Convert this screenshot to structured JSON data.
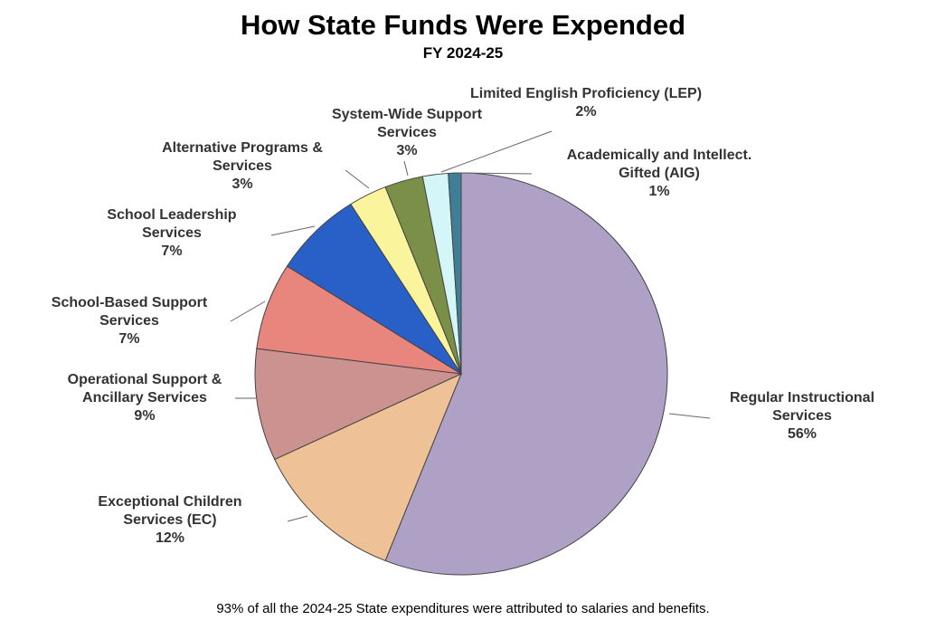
{
  "chart_data": {
    "type": "pie",
    "title": "How State Funds Were Expended",
    "subtitle": "FY 2024-25",
    "footnote": "93% of all the 2024-25 State expenditures were attributed to salaries and benefits.",
    "start": "12 o'clock, clockwise",
    "slices": [
      {
        "label": "Regular Instructional Services",
        "lines": [
          "Regular Instructional",
          "Services"
        ],
        "value": 56,
        "pct": "56%",
        "color": "#AFA0C6"
      },
      {
        "label": "Exceptional Children Services (EC)",
        "lines": [
          "Exceptional Children",
          "Services (EC)"
        ],
        "value": 12,
        "pct": "12%",
        "color": "#EEC197"
      },
      {
        "label": "Operational Support & Ancillary Services",
        "lines": [
          "Operational Support &",
          "Ancillary Services"
        ],
        "value": 9,
        "pct": "9%",
        "color": "#CC9290"
      },
      {
        "label": "School-Based Support Services",
        "lines": [
          "School-Based Support",
          "Services"
        ],
        "value": 7,
        "pct": "7%",
        "color": "#E8857D"
      },
      {
        "label": "School Leadership Services",
        "lines": [
          "School Leadership",
          "Services"
        ],
        "value": 7,
        "pct": "7%",
        "color": "#2860C8"
      },
      {
        "label": "Alternative Programs & Services",
        "lines": [
          "Alternative Programs &",
          "Services"
        ],
        "value": 3,
        "pct": "3%",
        "color": "#FAF59C"
      },
      {
        "label": "System-Wide Support Services",
        "lines": [
          "System-Wide Support",
          "Services"
        ],
        "value": 3,
        "pct": "3%",
        "color": "#7A8F47"
      },
      {
        "label": "Limited English Proficiency (LEP)",
        "lines": [
          "Limited English Proficiency (LEP)"
        ],
        "value": 2,
        "pct": "2%",
        "color": "#D4F6F8"
      },
      {
        "label": "Academically and Intellect. Gifted (AIG)",
        "lines": [
          "Academically and Intellect.",
          "Gifted (AIG)"
        ],
        "value": 1,
        "pct": "1%",
        "color": "#3E7E96"
      }
    ]
  }
}
